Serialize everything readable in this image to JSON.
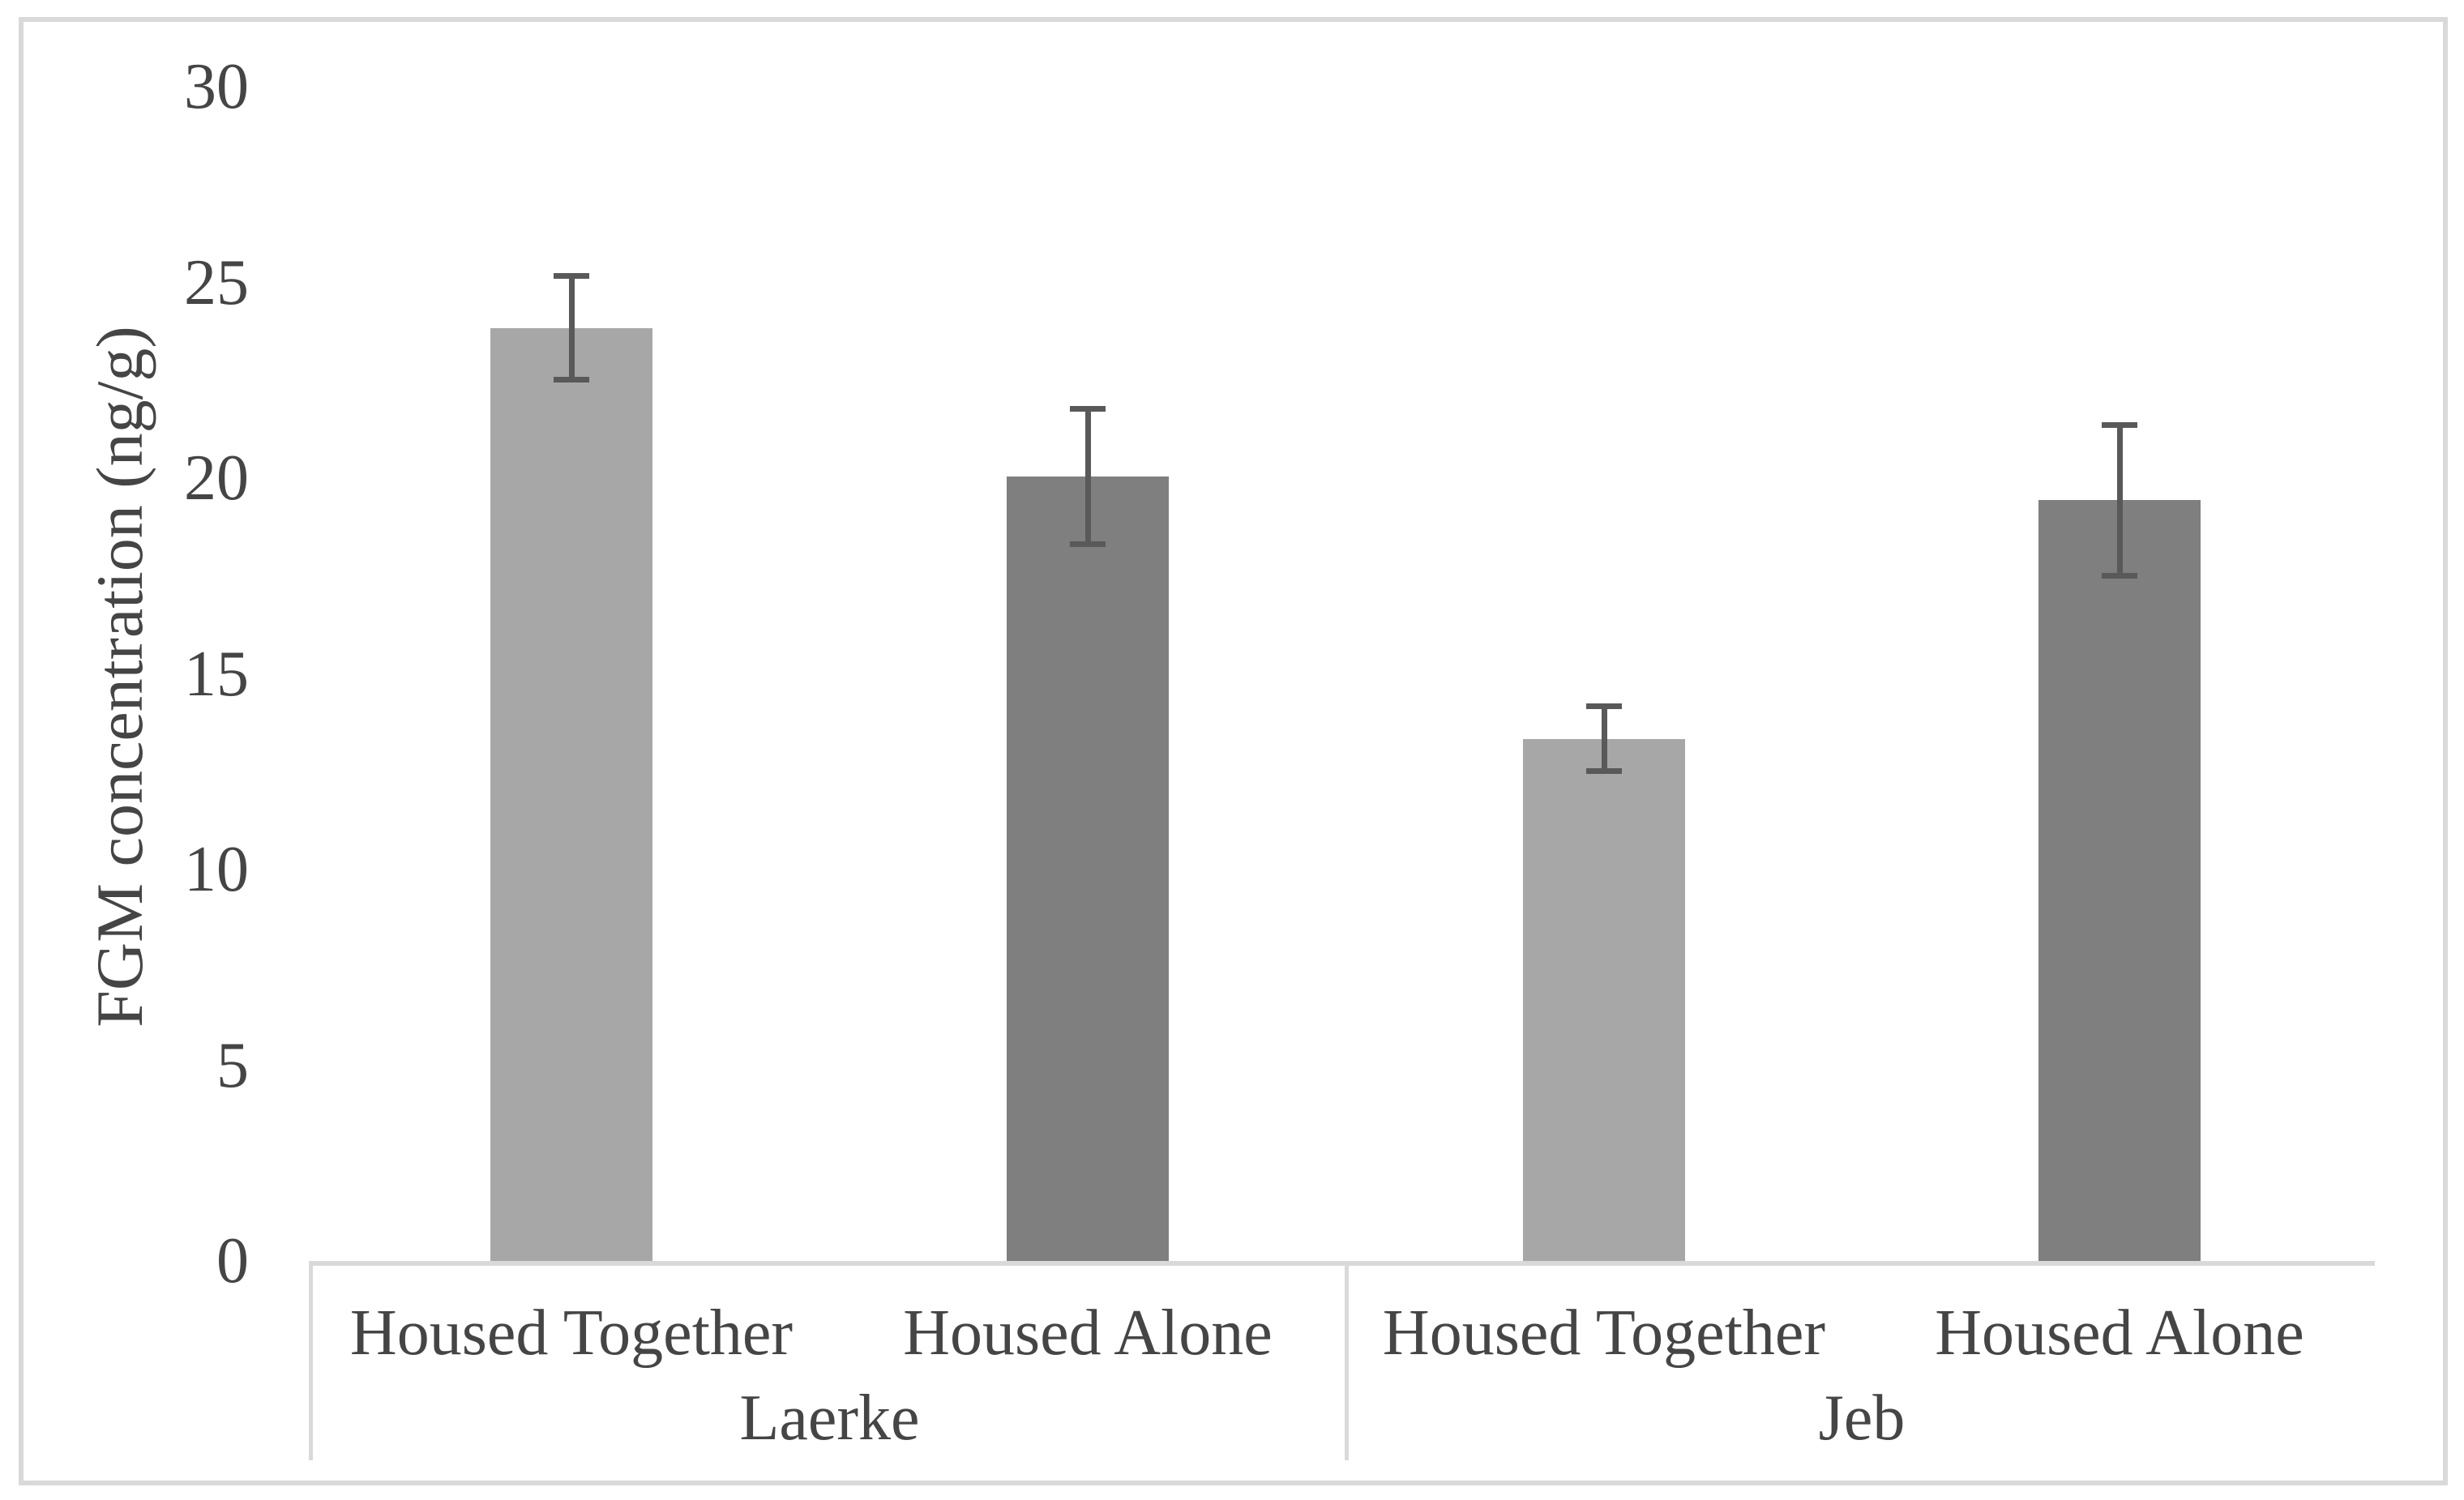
{
  "figure": {
    "background": "#ffffff",
    "border_color": "#d9d9d9"
  },
  "chart_data": {
    "type": "bar",
    "title": "",
    "xlabel": "",
    "ylabel": "FGM concentration (ng/g)",
    "ylim": [
      0,
      30
    ],
    "yticks": [
      0,
      5,
      10,
      15,
      20,
      25,
      30
    ],
    "grid": false,
    "legend": "none",
    "group_axis": [
      "Laerke",
      "Jeb"
    ],
    "conditions": [
      "Housed Together",
      "Housed Alone"
    ],
    "bars": [
      {
        "group": "Laerke",
        "label": "Housed Together",
        "value": 23.9,
        "error": 1.4,
        "color": "#a7a7a7"
      },
      {
        "group": "Laerke",
        "label": "Housed Alone",
        "value": 20.1,
        "error": 1.8,
        "color": "#7f7f7f"
      },
      {
        "group": "Jeb",
        "label": "Housed Together",
        "value": 13.4,
        "error": 0.9,
        "color": "#a7a7a7"
      },
      {
        "group": "Jeb",
        "label": "Housed Alone",
        "value": 19.5,
        "error": 2.0,
        "color": "#7f7f7f"
      }
    ],
    "series": [
      {
        "name": "Housed Together",
        "color": "#a7a7a7",
        "values": [
          23.9,
          13.4
        ]
      },
      {
        "name": "Housed Alone",
        "color": "#7f7f7f",
        "values": [
          20.1,
          19.5
        ]
      }
    ],
    "error_bar_color": "#595959",
    "axis_line_color": "#d9d9d9",
    "text_color": "#454545"
  }
}
